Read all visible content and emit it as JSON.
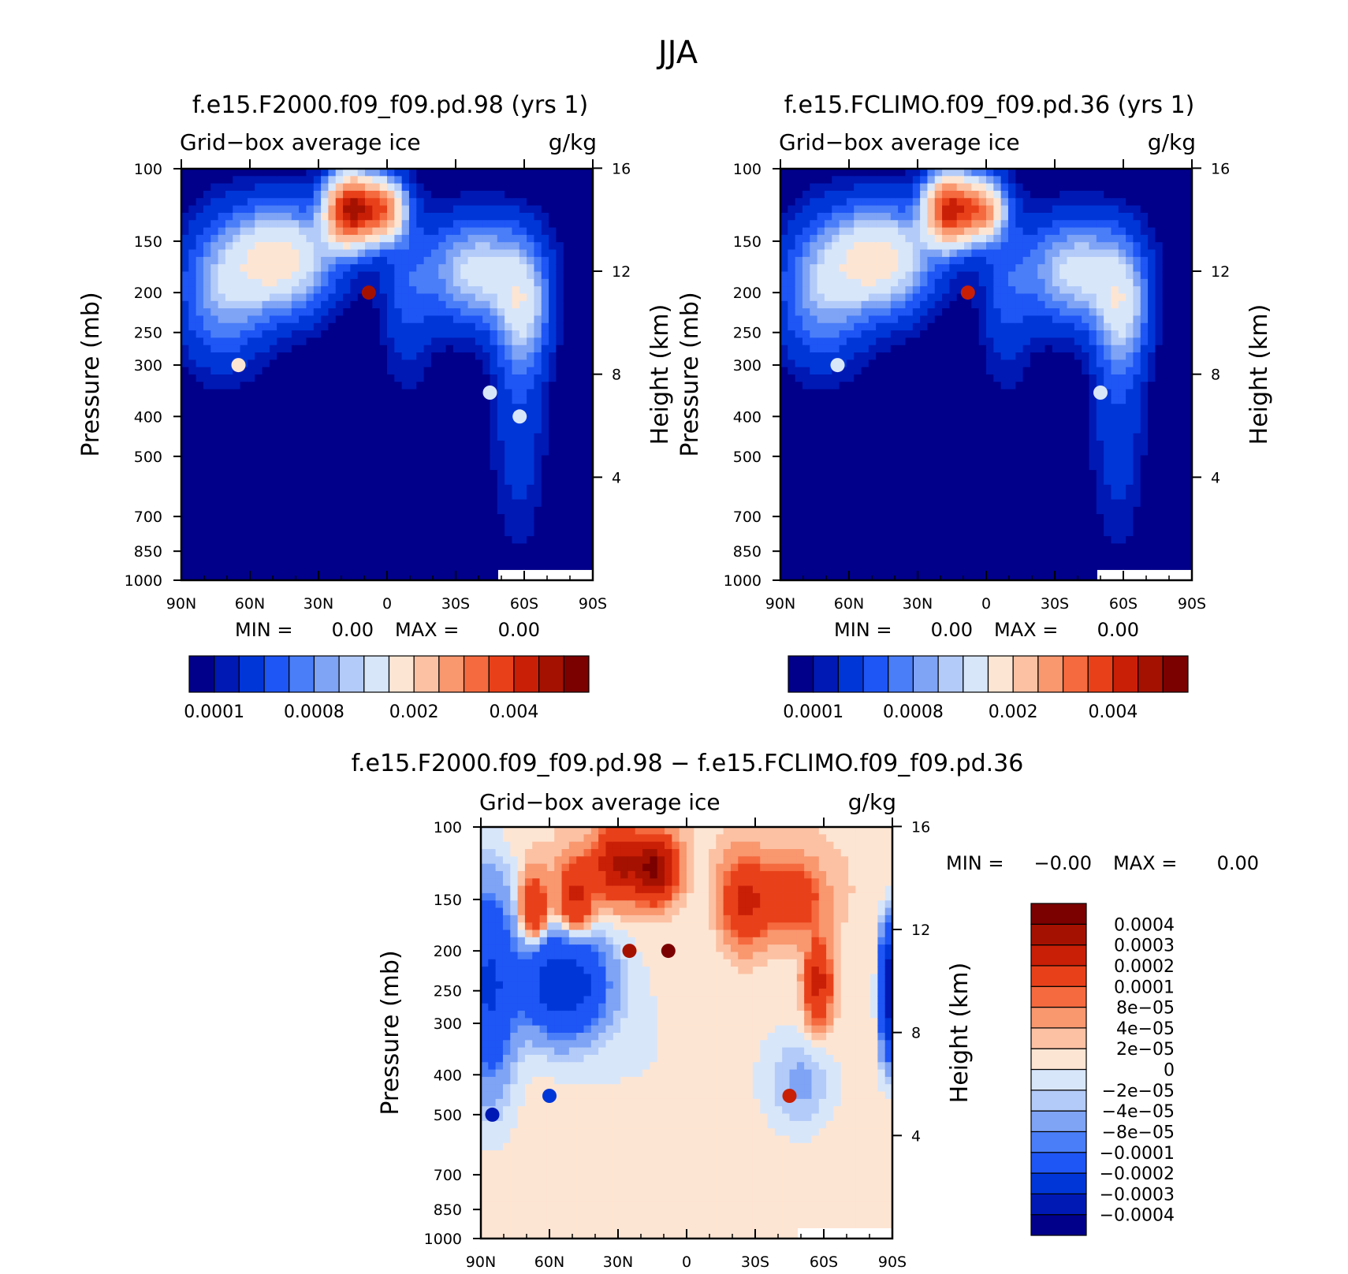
{
  "page_title": "JJA",
  "colors": {
    "sequential": [
      "#00008b",
      "#0019b4",
      "#0036d8",
      "#1e55f5",
      "#4a7ef8",
      "#7fa3f5",
      "#b3cbf8",
      "#d8e6fa",
      "#fde5d3",
      "#fcc1a3",
      "#f9976f",
      "#f56a3f",
      "#e8411a",
      "#c91f07",
      "#a51100",
      "#7b0000"
    ],
    "diverging": [
      "#00008b",
      "#0019b4",
      "#0036d8",
      "#1e55f5",
      "#4a7ef8",
      "#7fa3f5",
      "#b3cbf8",
      "#d8e6fa",
      "#fde5d3",
      "#fcc1a3",
      "#f9976f",
      "#f56a3f",
      "#e8411a",
      "#c91f07",
      "#a51100",
      "#7b0000"
    ]
  },
  "panels": [
    {
      "title": "f.e15.F2000.f09_f09.pd.98 (yrs  1)",
      "subtitle_left": "Grid−box average ice",
      "subtitle_right": "g/kg",
      "min_label": "MIN  =",
      "min_value": "0.00",
      "max_label": "MAX  =",
      "max_value": "0.00",
      "colorbar_labels": [
        "0.0001",
        "0.0008",
        "0.002",
        "0.004"
      ]
    },
    {
      "title": "f.e15.FCLIMO.f09_f09.pd.36 (yrs  1)",
      "subtitle_left": "Grid−box average ice",
      "subtitle_right": "g/kg",
      "min_label": "MIN  =",
      "min_value": "0.00",
      "max_label": "MAX  =",
      "max_value": "0.00",
      "colorbar_labels": [
        "0.0001",
        "0.0008",
        "0.002",
        "0.004"
      ]
    },
    {
      "title": "f.e15.F2000.f09_f09.pd.98 − f.e15.FCLIMO.f09_f09.pd.36",
      "subtitle_left": "Grid−box average ice",
      "subtitle_right": "g/kg",
      "min_label": "MIN  =",
      "min_value": "−0.00",
      "max_label": "MAX  =",
      "max_value": "0.00",
      "colorbar_labels": [
        "0.0004",
        "0.0003",
        "0.0002",
        "0.0001",
        "8e−05",
        "4e−05",
        "2e−05",
        "0",
        "−2e−05",
        "−4e−05",
        "−8e−05",
        "−0.0001",
        "−0.0002",
        "−0.0003",
        "−0.0004"
      ]
    }
  ],
  "chart_data": [
    {
      "type": "heatmap",
      "title": "f.e15.F2000.f09_f09.pd.98 (yrs  1)",
      "subtitle": "Grid−box average ice",
      "units": "g/kg",
      "xlabel": "",
      "ylabel": "Pressure (mb)",
      "y2label": "Height (km)",
      "x_ticks": [
        "90N",
        "60N",
        "30N",
        "0",
        "30S",
        "60S",
        "90S"
      ],
      "y_ticks": [
        100,
        150,
        200,
        250,
        300,
        400,
        500,
        700,
        850,
        1000
      ],
      "y2_ticks": [
        16,
        12,
        8,
        4
      ],
      "ylim": [
        1000,
        100
      ],
      "levels": [
        0.0001,
        0.0002,
        0.0004,
        0.0006,
        0.0008,
        0.001,
        0.0012,
        0.0016,
        0.002,
        0.0025,
        0.003,
        0.0035,
        0.004,
        0.0045,
        0.005
      ],
      "features": [
        {
          "lat": 8,
          "p": 200,
          "value": 0.0045
        },
        {
          "lat": 65,
          "p": 300,
          "value": 0.0016
        },
        {
          "lat": -45,
          "p": 350,
          "value": 0.0012
        },
        {
          "lat": -58,
          "p": 400,
          "value": 0.0012
        }
      ],
      "min": "0.00",
      "max": "0.00"
    },
    {
      "type": "heatmap",
      "title": "f.e15.FCLIMO.f09_f09.pd.36 (yrs  1)",
      "subtitle": "Grid−box average ice",
      "units": "g/kg",
      "xlabel": "",
      "ylabel": "Pressure (mb)",
      "y2label": "Height (km)",
      "x_ticks": [
        "90N",
        "60N",
        "30N",
        "0",
        "30S",
        "60S",
        "90S"
      ],
      "y_ticks": [
        100,
        150,
        200,
        250,
        300,
        400,
        500,
        700,
        850,
        1000
      ],
      "y2_ticks": [
        16,
        12,
        8,
        4
      ],
      "ylim": [
        1000,
        100
      ],
      "levels": [
        0.0001,
        0.0002,
        0.0004,
        0.0006,
        0.0008,
        0.001,
        0.0012,
        0.0016,
        0.002,
        0.0025,
        0.003,
        0.0035,
        0.004,
        0.0045,
        0.005
      ],
      "features": [
        {
          "lat": 8,
          "p": 200,
          "value": 0.004
        },
        {
          "lat": 65,
          "p": 300,
          "value": 0.0012
        },
        {
          "lat": -50,
          "p": 350,
          "value": 0.0012
        }
      ],
      "min": "0.00",
      "max": "0.00"
    },
    {
      "type": "heatmap",
      "title": "f.e15.F2000.f09_f09.pd.98 − f.e15.FCLIMO.f09_f09.pd.36",
      "subtitle": "Grid−box average ice",
      "units": "g/kg",
      "xlabel": "",
      "ylabel": "Pressure (mb)",
      "y2label": "Height (km)",
      "x_ticks": [
        "90N",
        "60N",
        "30N",
        "0",
        "30S",
        "60S",
        "90S"
      ],
      "y_ticks": [
        100,
        150,
        200,
        250,
        300,
        400,
        500,
        700,
        850,
        1000
      ],
      "y2_ticks": [
        16,
        12,
        8,
        4
      ],
      "ylim": [
        1000,
        100
      ],
      "levels": [
        -0.0004,
        -0.0003,
        -0.0002,
        -0.0001,
        -8e-05,
        -4e-05,
        -2e-05,
        0,
        2e-05,
        4e-05,
        8e-05,
        0.0001,
        0.0002,
        0.0003,
        0.0004
      ],
      "features": [
        {
          "lat": 8,
          "p": 200,
          "value": 0.0004
        },
        {
          "lat": 25,
          "p": 200,
          "value": 0.0003
        },
        {
          "lat": -45,
          "p": 450,
          "value": 0.0002
        },
        {
          "lat": 60,
          "p": 450,
          "value": -0.0003
        },
        {
          "lat": 85,
          "p": 500,
          "value": -0.0004
        }
      ],
      "min": "−0.00",
      "max": "0.00"
    }
  ]
}
